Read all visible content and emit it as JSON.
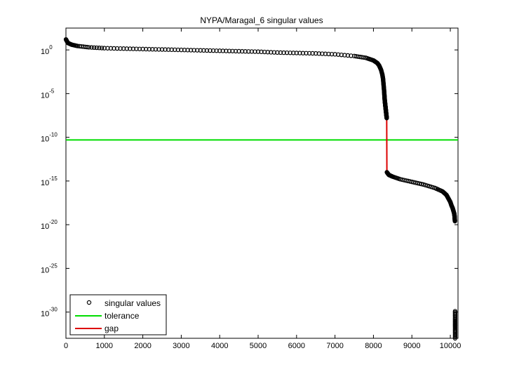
{
  "chart_data": {
    "type": "scatter",
    "title": "NYPA/Maragal_6 singular values",
    "xlabel": "",
    "ylabel": "",
    "xlim": [
      0,
      10200
    ],
    "ylim_log10": [
      -33,
      2.5
    ],
    "y_scale": "log",
    "x_ticks": [
      0,
      1000,
      2000,
      3000,
      4000,
      5000,
      6000,
      7000,
      8000,
      9000,
      10000
    ],
    "x_tick_labels": [
      "0",
      "1000",
      "2000",
      "3000",
      "4000",
      "5000",
      "6000",
      "7000",
      "8000",
      "9000",
      "10000"
    ],
    "y_ticks_log10": [
      0,
      -5,
      -10,
      -15,
      -20,
      -25,
      -30
    ],
    "y_tick_base": "10",
    "y_tick_exponents": [
      "0",
      "-5",
      "-10",
      "-15",
      "-20",
      "-25",
      "-30"
    ],
    "grid": false,
    "legend_position": "bottom-left",
    "series": [
      {
        "name": "singular values",
        "kind": "markers",
        "color": "#000000",
        "x": [
          1,
          50,
          150,
          300,
          600,
          1000,
          1500,
          2000,
          2500,
          3000,
          3500,
          4000,
          4500,
          5000,
          5500,
          6000,
          6500,
          7000,
          7500,
          7800,
          8000,
          8100,
          8150,
          8200,
          8230,
          8250,
          8260,
          8270,
          8280,
          8285,
          8290,
          8295,
          8300,
          8305,
          8310,
          8315,
          8320,
          8325,
          8330,
          8335,
          8340,
          8345,
          8350,
          8400,
          8500,
          8700,
          9000,
          9300,
          9600,
          9800,
          9900,
          9950,
          10000,
          10030,
          10060,
          10080,
          10100,
          10110,
          10115,
          10120,
          10125,
          10125,
          10125,
          10125,
          10125
        ],
        "y_log10": [
          1.2,
          0.8,
          0.6,
          0.45,
          0.3,
          0.2,
          0.15,
          0.1,
          0.05,
          0.0,
          -0.05,
          -0.1,
          -0.15,
          -0.2,
          -0.3,
          -0.35,
          -0.4,
          -0.5,
          -0.7,
          -0.9,
          -1.2,
          -1.5,
          -1.8,
          -2.3,
          -2.8,
          -3.3,
          -3.8,
          -4.3,
          -4.8,
          -5.2,
          -5.5,
          -5.8,
          -6.0,
          -6.2,
          -6.4,
          -6.6,
          -6.8,
          -7.0,
          -7.2,
          -7.4,
          -7.6,
          -7.8,
          -14.0,
          -14.3,
          -14.5,
          -14.8,
          -15.1,
          -15.4,
          -15.8,
          -16.2,
          -16.6,
          -17.0,
          -17.4,
          -17.8,
          -18.1,
          -18.4,
          -18.7,
          -19.0,
          -19.3,
          -19.6,
          -29.9,
          -30.7,
          -31.4,
          -32.1,
          -33.0
        ]
      },
      {
        "name": "tolerance",
        "kind": "line",
        "color": "#00dd00",
        "x": [
          0,
          10200
        ],
        "y_log10": [
          -10.3,
          -10.3
        ]
      },
      {
        "name": "gap",
        "kind": "line",
        "color": "#dd0000",
        "x": [
          8290,
          8345,
          8350
        ],
        "y_log10": [
          -5.6,
          -7.8,
          -14.0
        ]
      }
    ]
  }
}
